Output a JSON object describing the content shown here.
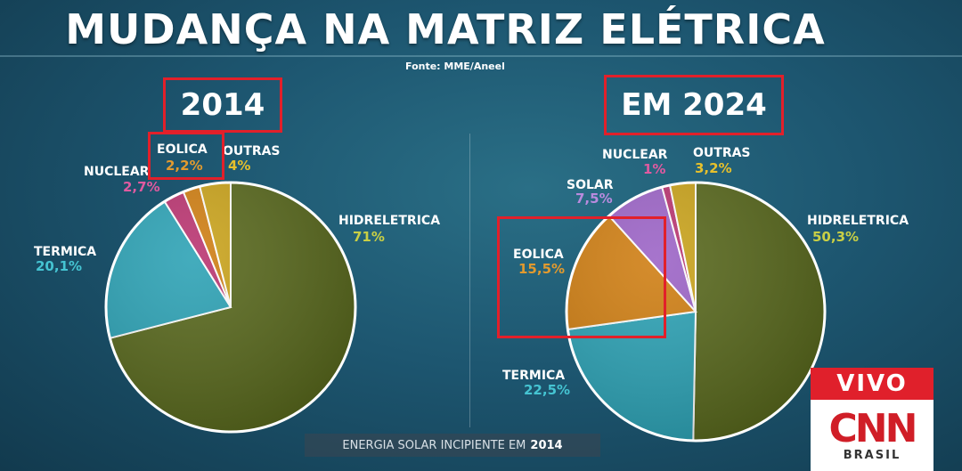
{
  "title": "MUDANÇA NA MATRIZ ELÉTRICA",
  "source": "Fonte: MME/Aneel",
  "caption": {
    "text": "ENERGIA SOLAR INCIPIENTE EM",
    "year": "2014"
  },
  "broadcast": {
    "live_label": "VIVO",
    "logo_text": "CNN",
    "logo_sub": "BRASIL"
  },
  "colors": {
    "hidreletrica": "#56661a",
    "termica": "#2aa1b4",
    "eolica": "#cf7d10",
    "solar": "#9b62c6",
    "nuclear": "#b9326f",
    "outras": "#c9a219",
    "highlight": "#e2202a"
  },
  "chart_data": [
    {
      "type": "pie",
      "title": "2014",
      "slices": [
        {
          "key": "hidreletrica",
          "label": "HIDRELETRICA",
          "value_label": "71%",
          "value": 71
        },
        {
          "key": "termica",
          "label": "TERMICA",
          "value_label": "20,1%",
          "value": 20.1
        },
        {
          "key": "nuclear",
          "label": "NUCLEAR",
          "value_label": "2,7%",
          "value": 2.7
        },
        {
          "key": "eolica",
          "label": "EOLICA",
          "value_label": "2,2%",
          "value": 2.2
        },
        {
          "key": "outras",
          "label": "OUTRAS",
          "value_label": "4%",
          "value": 4
        }
      ]
    },
    {
      "type": "pie",
      "title": "EM 2024",
      "slices": [
        {
          "key": "hidreletrica",
          "label": "HIDRELETRICA",
          "value_label": "50,3%",
          "value": 50.3
        },
        {
          "key": "termica",
          "label": "TERMICA",
          "value_label": "22,5%",
          "value": 22.5
        },
        {
          "key": "eolica",
          "label": "EOLICA",
          "value_label": "15,5%",
          "value": 15.5
        },
        {
          "key": "solar",
          "label": "SOLAR",
          "value_label": "7,5%",
          "value": 7.5
        },
        {
          "key": "nuclear",
          "label": "NUCLEAR",
          "value_label": "1%",
          "value": 1
        },
        {
          "key": "outras",
          "label": "OUTRAS",
          "value_label": "3,2%",
          "value": 3.2
        }
      ]
    }
  ]
}
